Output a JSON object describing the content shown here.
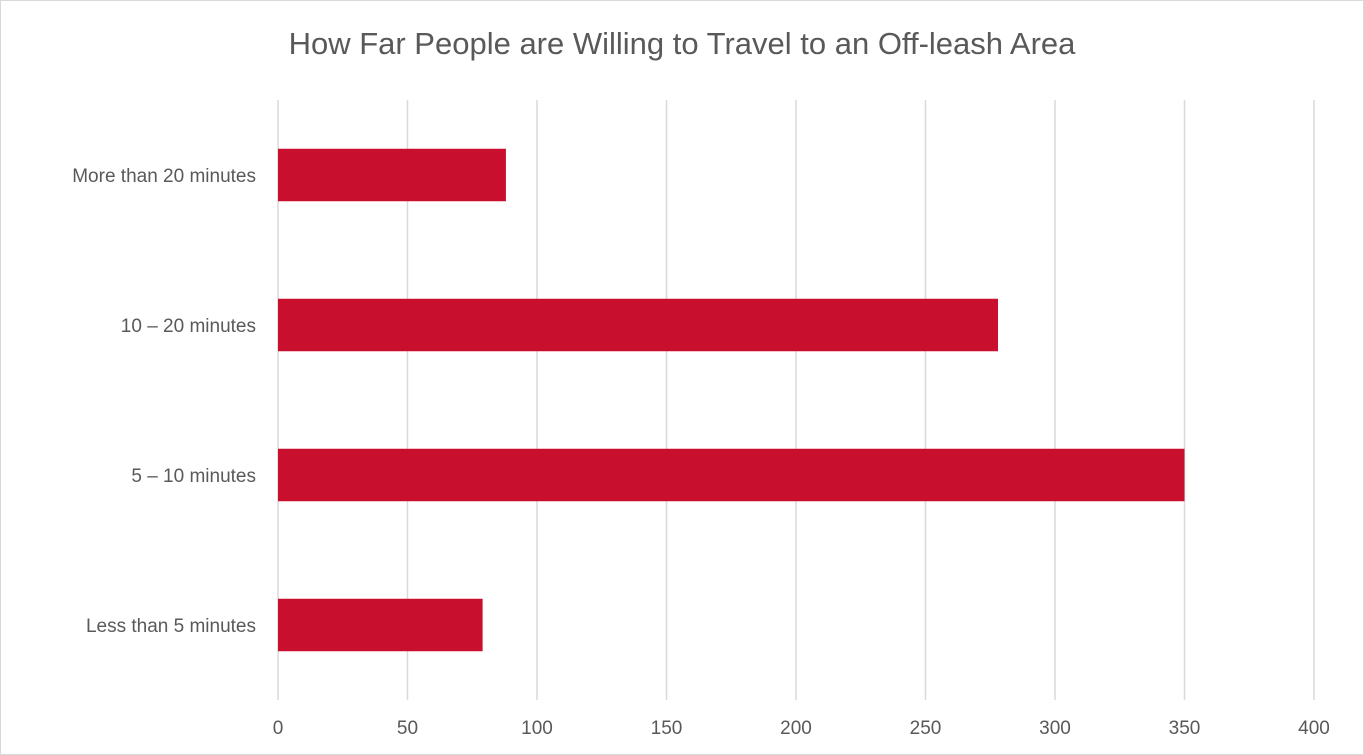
{
  "chart_data": {
    "type": "bar",
    "orientation": "horizontal",
    "title": "How Far People are Willing to Travel to an Off-leash Area",
    "xlabel": "",
    "ylabel": "",
    "categories": [
      "Less than 5 minutes",
      "5 – 10 minutes",
      "10 – 20 minutes",
      "More than 20 minutes"
    ],
    "values": [
      79,
      350,
      278,
      88
    ],
    "xlim": [
      0,
      400
    ],
    "xticks": [
      "0",
      "50",
      "100",
      "150",
      "200",
      "250",
      "300",
      "350",
      "400"
    ],
    "grid": true,
    "legend": "none",
    "bar_color": "#c8102e",
    "grid_color": "#d9d9d9"
  }
}
